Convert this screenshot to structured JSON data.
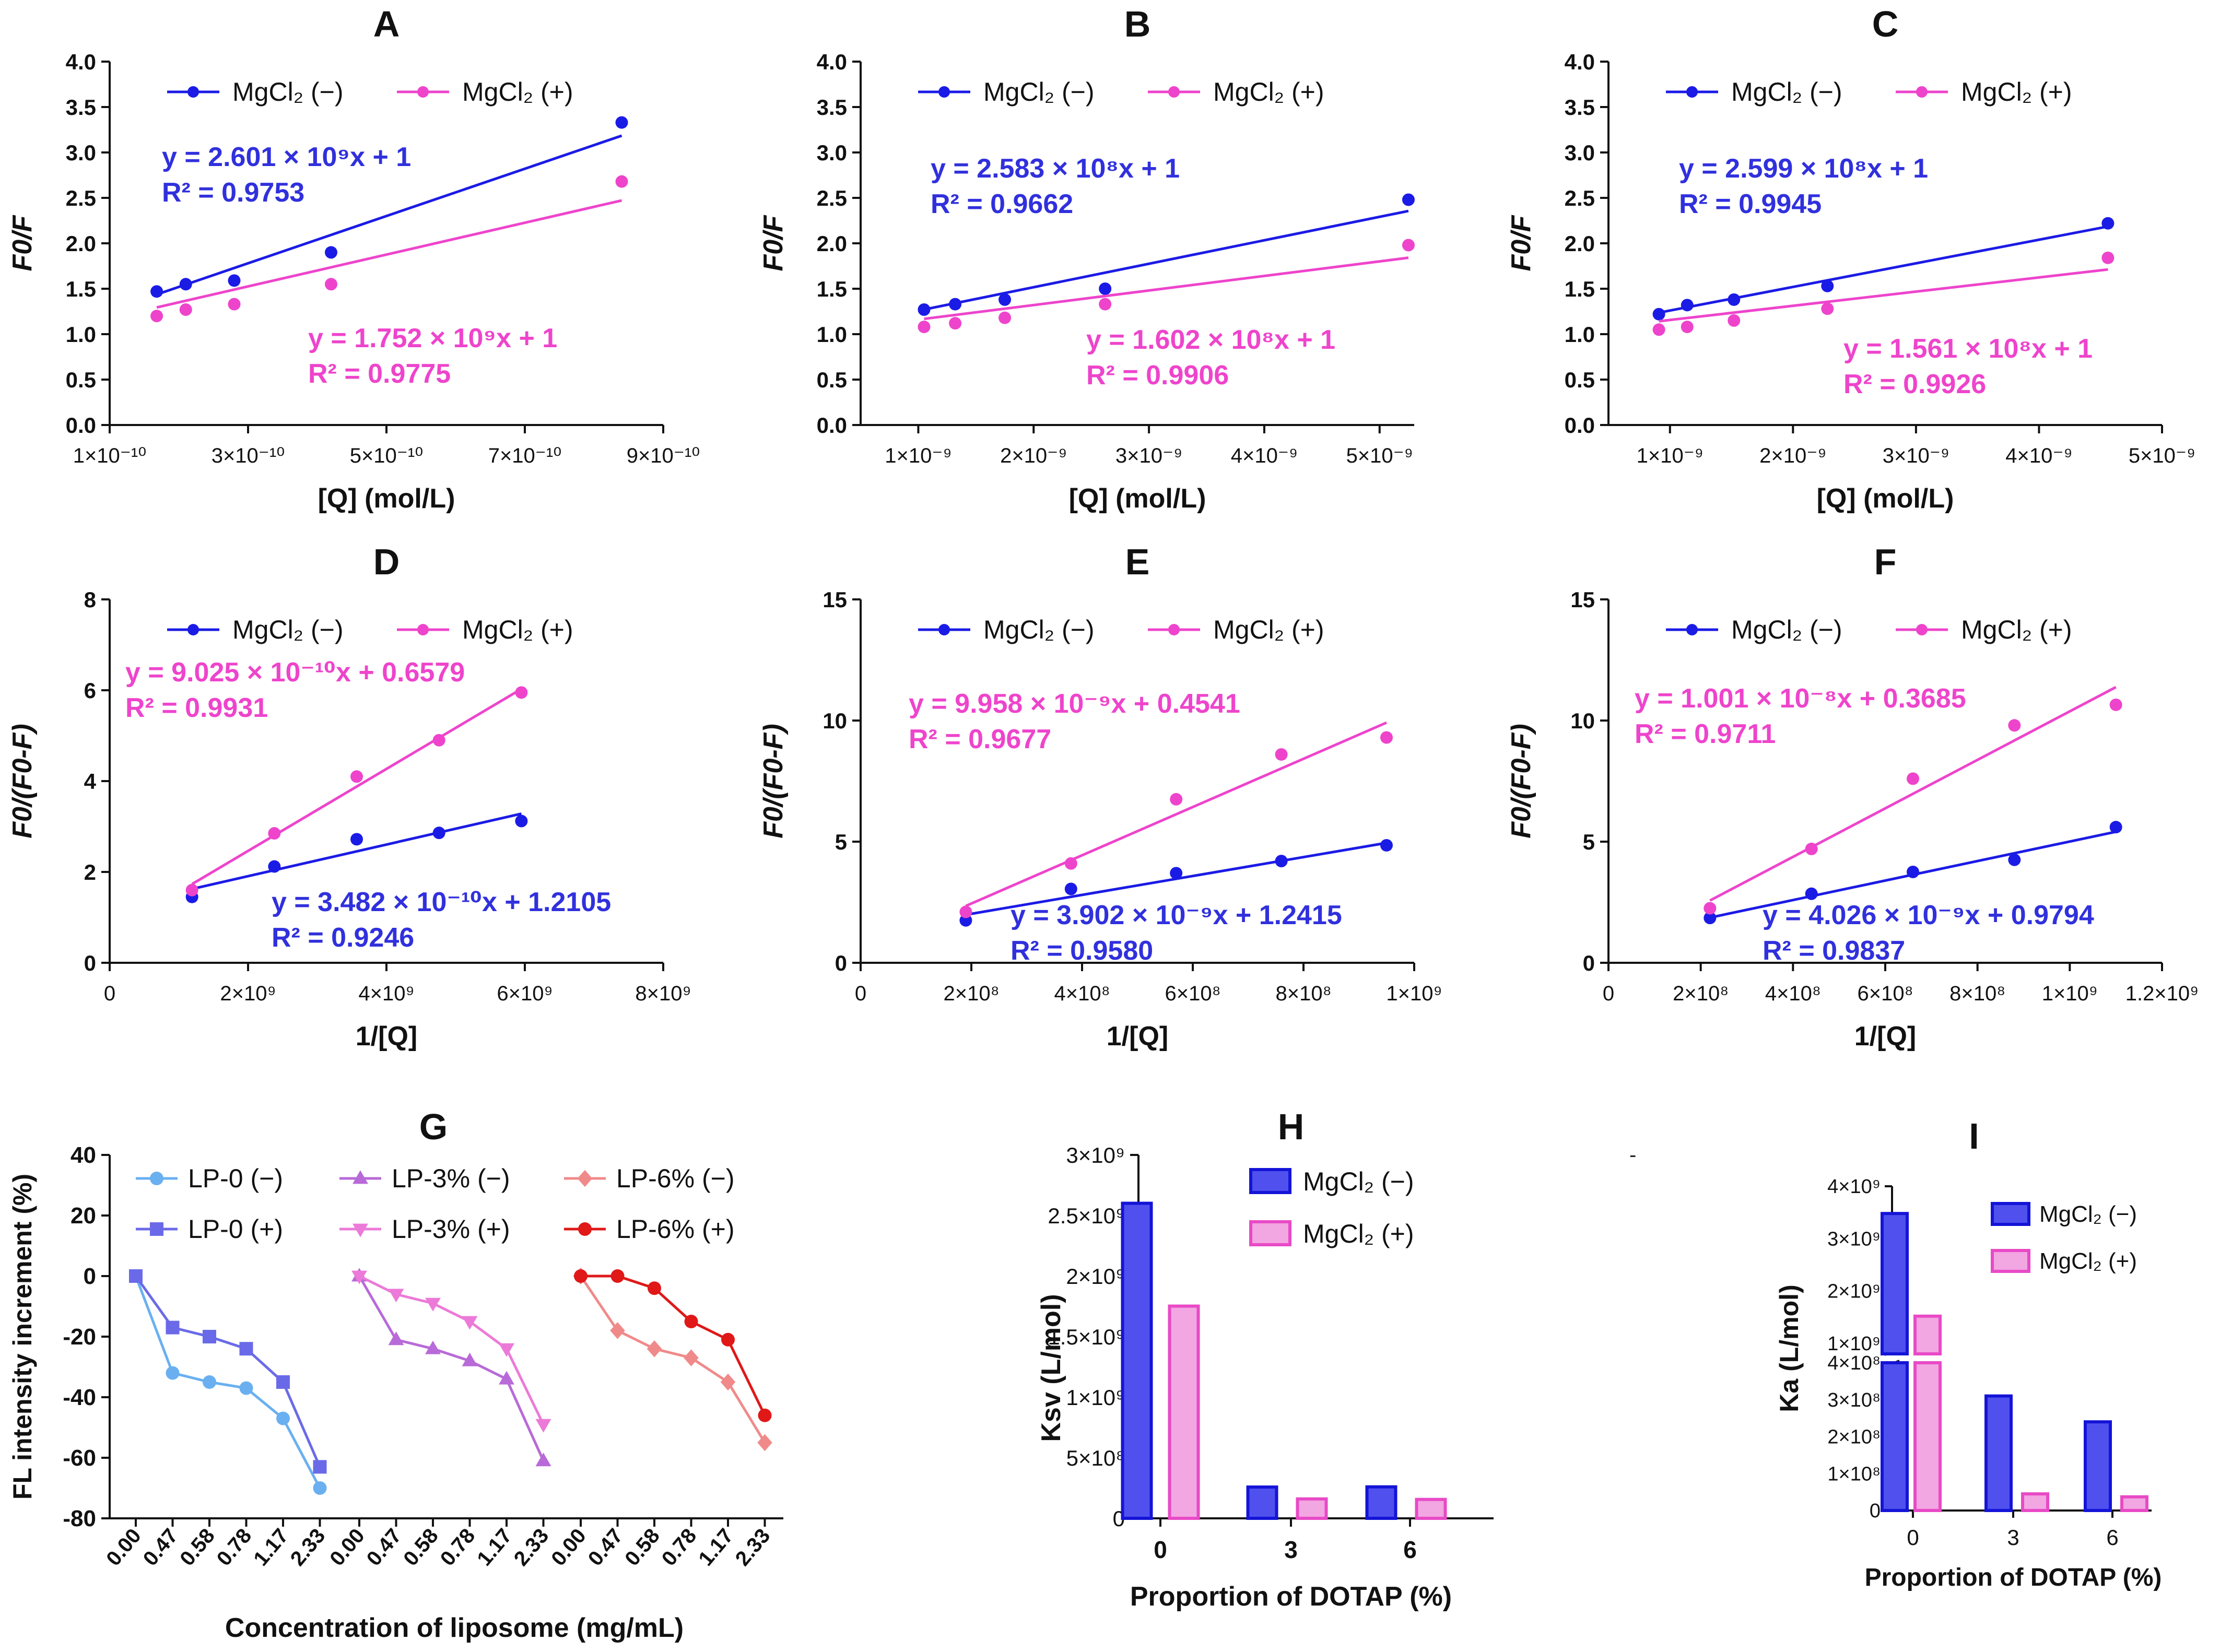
{
  "figure": {
    "colors": {
      "blue": "#1b1be6",
      "pink": "#ee44cc",
      "eq_blue": "#3030dd",
      "eq_pink": "#ee44cc",
      "lp0_minus": "#6ab0f0",
      "lp0_plus": "#6a6ae8",
      "lp3_minus": "#b86ad8",
      "lp3_plus": "#ec7ad8",
      "lp6_minus": "#f08a8a",
      "lp6_plus": "#e01818",
      "bar_blue_fill": "#5050ee",
      "bar_blue_edge": "#1414d8",
      "bar_pink_fill": "#f2a6e2",
      "bar_pink_edge": "#e84ac6"
    },
    "stray_mark": "-"
  },
  "chart_data": [
    {
      "id": "A",
      "type": "scatter",
      "title": "A",
      "xlabel": "[Q] (mol/L)",
      "ylabel": "F0/F",
      "xlim": [
        1e-10,
        9e-10
      ],
      "ylim": [
        0,
        4
      ],
      "xticks": [
        1e-10,
        3e-10,
        5e-10,
        7e-10,
        9e-10
      ],
      "xtick_labels": [
        "1×10⁻¹⁰",
        "3×10⁻¹⁰",
        "5×10⁻¹⁰",
        "7×10⁻¹⁰",
        "9×10⁻¹⁰"
      ],
      "yticks": [
        0,
        0.5,
        1,
        1.5,
        2,
        2.5,
        3,
        3.5,
        4
      ],
      "ytick_labels": [
        "0.0",
        "0.5",
        "1.0",
        "1.5",
        "2.0",
        "2.5",
        "3.0",
        "3.5",
        "4.0"
      ],
      "legend": [
        "MgCl₂ (−)",
        "MgCl₂ (+)"
      ],
      "series": [
        {
          "name": "MgCl₂ (−)",
          "x": [
            1.68e-10,
            2.1e-10,
            2.8e-10,
            4.2e-10,
            8.4e-10
          ],
          "y": [
            1.47,
            1.55,
            1.59,
            1.9,
            3.33
          ],
          "fit": {
            "slope": 2601000000.0,
            "intercept": 1,
            "x0": 1.68e-10,
            "x1": 8.4e-10
          },
          "equation": "y = 2.601 × 10⁹x + 1",
          "r2": "R² = 0.9753"
        },
        {
          "name": "MgCl₂ (+)",
          "x": [
            1.68e-10,
            2.1e-10,
            2.8e-10,
            4.2e-10,
            8.4e-10
          ],
          "y": [
            1.2,
            1.27,
            1.33,
            1.55,
            2.68
          ],
          "fit": {
            "slope": 1752000000.0,
            "intercept": 1,
            "x0": 1.68e-10,
            "x1": 8.4e-10
          },
          "equation": "y = 1.752 × 10⁹x + 1",
          "r2": "R² = 0.9775"
        }
      ]
    },
    {
      "id": "B",
      "type": "scatter",
      "title": "B",
      "xlabel": "[Q] (mol/L)",
      "ylabel": "F0/F",
      "xlim": [
        5e-10,
        5.3e-09
      ],
      "ylim": [
        0,
        4
      ],
      "xticks": [
        1e-09,
        2e-09,
        3e-09,
        4e-09,
        5e-09
      ],
      "xtick_labels": [
        "1×10⁻⁹",
        "2×10⁻⁹",
        "3×10⁻⁹",
        "4×10⁻⁹",
        "5×10⁻⁹"
      ],
      "yticks": [
        0,
        0.5,
        1,
        1.5,
        2,
        2.5,
        3,
        3.5,
        4
      ],
      "ytick_labels": [
        "0.0",
        "0.5",
        "1.0",
        "1.5",
        "2.0",
        "2.5",
        "3.0",
        "3.5",
        "4.0"
      ],
      "legend": [
        "MgCl₂ (−)",
        "MgCl₂ (+)"
      ],
      "series": [
        {
          "name": "MgCl₂ (−)",
          "x": [
            1.05e-09,
            1.32e-09,
            1.75e-09,
            2.62e-09,
            5.25e-09
          ],
          "y": [
            1.27,
            1.33,
            1.38,
            1.5,
            2.48
          ],
          "fit": {
            "slope": 258300000.0,
            "intercept": 1,
            "x0": 1.05e-09,
            "x1": 5.25e-09
          },
          "equation": "y = 2.583 × 10⁸x + 1",
          "r2": "R² = 0.9662"
        },
        {
          "name": "MgCl₂ (+)",
          "x": [
            1.05e-09,
            1.32e-09,
            1.75e-09,
            2.62e-09,
            5.25e-09
          ],
          "y": [
            1.08,
            1.12,
            1.18,
            1.33,
            1.98
          ],
          "fit": {
            "slope": 160200000.0,
            "intercept": 1,
            "x0": 1.05e-09,
            "x1": 5.25e-09
          },
          "equation": "y = 1.602 × 10⁸x + 1",
          "r2": "R² = 0.9906"
        }
      ]
    },
    {
      "id": "C",
      "type": "scatter",
      "title": "C",
      "xlabel": "[Q] (mol/L)",
      "ylabel": "F0/F",
      "xlim": [
        5e-10,
        5e-09
      ],
      "ylim": [
        0,
        4
      ],
      "xticks": [
        1e-09,
        2e-09,
        3e-09,
        4e-09,
        5e-09
      ],
      "xtick_labels": [
        "1×10⁻⁹",
        "2×10⁻⁹",
        "3×10⁻⁹",
        "4×10⁻⁹",
        "5×10⁻⁹"
      ],
      "yticks": [
        0,
        0.5,
        1,
        1.5,
        2,
        2.5,
        3,
        3.5,
        4
      ],
      "ytick_labels": [
        "0.0",
        "0.5",
        "1.0",
        "1.5",
        "2.0",
        "2.5",
        "3.0",
        "3.5",
        "4.0"
      ],
      "legend": [
        "MgCl₂ (−)",
        "MgCl₂ (+)"
      ],
      "series": [
        {
          "name": "MgCl₂ (−)",
          "x": [
            9.1e-10,
            1.14e-09,
            1.52e-09,
            2.28e-09,
            4.56e-09
          ],
          "y": [
            1.22,
            1.32,
            1.38,
            1.53,
            2.22
          ],
          "fit": {
            "slope": 259900000.0,
            "intercept": 1,
            "x0": 9.1e-10,
            "x1": 4.56e-09
          },
          "equation": "y = 2.599 × 10⁸x + 1",
          "r2": "R² = 0.9945"
        },
        {
          "name": "MgCl₂ (+)",
          "x": [
            9.1e-10,
            1.14e-09,
            1.52e-09,
            2.28e-09,
            4.56e-09
          ],
          "y": [
            1.05,
            1.08,
            1.15,
            1.28,
            1.84
          ],
          "fit": {
            "slope": 156100000.0,
            "intercept": 1,
            "x0": 9.1e-10,
            "x1": 4.56e-09
          },
          "equation": "y = 1.561 × 10⁸x + 1",
          "r2": "R² = 0.9926"
        }
      ]
    },
    {
      "id": "D",
      "type": "scatter",
      "title": "D",
      "xlabel": "1/[Q]",
      "ylabel": "F0/(F0-F)",
      "xlim": [
        0,
        8000000000.0
      ],
      "ylim": [
        0,
        8
      ],
      "xticks": [
        0,
        2000000000.0,
        4000000000.0,
        6000000000.0,
        8000000000.0
      ],
      "xtick_labels": [
        "0",
        "2×10⁹",
        "4×10⁹",
        "6×10⁹",
        "8×10⁹"
      ],
      "yticks": [
        0,
        2,
        4,
        6,
        8
      ],
      "ytick_labels": [
        "0",
        "2",
        "4",
        "6",
        "8"
      ],
      "legend": [
        "MgCl₂ (−)",
        "MgCl₂ (+)"
      ],
      "series": [
        {
          "name": "MgCl₂ (−)",
          "x": [
            1190000000.0,
            2380000000.0,
            3570000000.0,
            4760000000.0,
            5950000000.0
          ],
          "y": [
            1.45,
            2.12,
            2.72,
            2.86,
            3.12
          ],
          "fit": {
            "slope": 3.482e-10,
            "intercept": 1.2105,
            "x0": 1190000000.0,
            "x1": 5950000000.0
          },
          "equation": "y = 3.482 × 10⁻¹⁰x + 1.2105",
          "r2": "R² = 0.9246"
        },
        {
          "name": "MgCl₂ (+)",
          "x": [
            1190000000.0,
            2380000000.0,
            3570000000.0,
            4760000000.0,
            5950000000.0
          ],
          "y": [
            1.6,
            2.85,
            4.1,
            4.9,
            5.95
          ],
          "fit": {
            "slope": 9.025e-10,
            "intercept": 0.6579,
            "x0": 1190000000.0,
            "x1": 5950000000.0
          },
          "equation": "y = 9.025 × 10⁻¹⁰x + 0.6579",
          "r2": "R² = 0.9931"
        }
      ]
    },
    {
      "id": "E",
      "type": "scatter",
      "title": "E",
      "xlabel": "1/[Q]",
      "ylabel": "F0/(F0-F)",
      "xlim": [
        0,
        1000000000.0
      ],
      "ylim": [
        0,
        15
      ],
      "xticks": [
        0,
        200000000.0,
        400000000.0,
        600000000.0,
        800000000.0,
        1000000000.0
      ],
      "xtick_labels": [
        "0",
        "2×10⁸",
        "4×10⁸",
        "6×10⁸",
        "8×10⁸",
        "1×10⁹"
      ],
      "yticks": [
        0,
        5,
        10,
        15
      ],
      "ytick_labels": [
        "0",
        "5",
        "10",
        "15"
      ],
      "legend": [
        "MgCl₂ (−)",
        "MgCl₂ (+)"
      ],
      "series": [
        {
          "name": "MgCl₂ (−)",
          "x": [
            190000000.0,
            380000000.0,
            570000000.0,
            760000000.0,
            950000000.0
          ],
          "y": [
            1.75,
            3.05,
            3.7,
            4.2,
            4.85
          ],
          "fit": {
            "slope": 3.902e-09,
            "intercept": 1.2415,
            "x0": 190000000.0,
            "x1": 950000000.0
          },
          "equation": "y = 3.902 × 10⁻⁹x + 1.2415",
          "r2": "R² = 0.9580"
        },
        {
          "name": "MgCl₂ (+)",
          "x": [
            190000000.0,
            380000000.0,
            570000000.0,
            760000000.0,
            950000000.0
          ],
          "y": [
            2.1,
            4.1,
            6.75,
            8.6,
            9.3
          ],
          "fit": {
            "slope": 9.958e-09,
            "intercept": 0.4541,
            "x0": 190000000.0,
            "x1": 950000000.0
          },
          "equation": "y = 9.958 × 10⁻⁹x + 0.4541",
          "r2": "R² = 0.9677"
        }
      ]
    },
    {
      "id": "F",
      "type": "scatter",
      "title": "F",
      "xlabel": "1/[Q]",
      "ylabel": "F0/(F0-F)",
      "xlim": [
        0,
        1200000000.0
      ],
      "ylim": [
        0,
        15
      ],
      "xticks": [
        0,
        200000000.0,
        400000000.0,
        600000000.0,
        800000000.0,
        1000000000.0,
        1200000000.0
      ],
      "xtick_labels": [
        "0",
        "2×10⁸",
        "4×10⁸",
        "6×10⁸",
        "8×10⁸",
        "1×10⁹",
        "1.2×10⁹"
      ],
      "yticks": [
        0,
        5,
        10,
        15
      ],
      "ytick_labels": [
        "0",
        "5",
        "10",
        "15"
      ],
      "legend": [
        "MgCl₂ (−)",
        "MgCl₂ (+)"
      ],
      "series": [
        {
          "name": "MgCl₂ (−)",
          "x": [
            220000000.0,
            440000000.0,
            660000000.0,
            880000000.0,
            1100000000.0
          ],
          "y": [
            1.85,
            2.85,
            3.75,
            4.25,
            5.6
          ],
          "fit": {
            "slope": 4.026e-09,
            "intercept": 0.9794,
            "x0": 220000000.0,
            "x1": 1100000000.0
          },
          "equation": "y = 4.026 × 10⁻⁹x + 0.9794",
          "r2": "R² = 0.9837"
        },
        {
          "name": "MgCl₂ (+)",
          "x": [
            220000000.0,
            440000000.0,
            660000000.0,
            880000000.0,
            1100000000.0
          ],
          "y": [
            2.25,
            4.7,
            7.6,
            9.8,
            10.65
          ],
          "fit": {
            "slope": 1.001e-08,
            "intercept": 0.3685,
            "x0": 220000000.0,
            "x1": 1100000000.0
          },
          "equation": "y = 1.001 × 10⁻⁸x + 0.3685",
          "r2": "R² = 0.9711"
        }
      ]
    },
    {
      "id": "G",
      "type": "line",
      "title": "G",
      "xlabel": "Concentration of liposome (mg/mL)",
      "ylabel": "FL intensity increment (%)",
      "categories": [
        "0.00",
        "0.47",
        "0.58",
        "0.78",
        "1.17",
        "2.33"
      ],
      "groups": 3,
      "ylim": [
        -80,
        40
      ],
      "yticks": [
        -80,
        -60,
        -40,
        -20,
        0,
        20,
        40
      ],
      "ytick_labels": [
        "-80",
        "-60",
        "-40",
        "-20",
        "0",
        "20",
        "40"
      ],
      "series": [
        {
          "name": "LP-0 (−)",
          "group": 0,
          "marker": "circle",
          "values": [
            0,
            -32,
            -35,
            -37,
            -47,
            -70
          ]
        },
        {
          "name": "LP-0 (+)",
          "group": 0,
          "marker": "square",
          "values": [
            0,
            -17,
            -20,
            -24,
            -35,
            -63
          ]
        },
        {
          "name": "LP-3% (−)",
          "group": 1,
          "marker": "triangle-up",
          "values": [
            0,
            -21,
            -24,
            -28,
            -34,
            -61
          ]
        },
        {
          "name": "LP-3% (+)",
          "group": 1,
          "marker": "triangle-down",
          "values": [
            0,
            -6,
            -9,
            -15,
            -24,
            -49
          ]
        },
        {
          "name": "LP-6% (−)",
          "group": 2,
          "marker": "diamond",
          "values": [
            0,
            -18,
            -24,
            -27,
            -35,
            -55
          ]
        },
        {
          "name": "LP-6% (+)",
          "group": 2,
          "marker": "circle",
          "values": [
            0,
            0,
            -4,
            -15,
            -21,
            -46
          ]
        }
      ]
    },
    {
      "id": "H",
      "type": "bar",
      "title": "H",
      "xlabel": "Proportion of DOTAP (%)",
      "ylabel": "Ksv (L/mol)",
      "categories": [
        "0",
        "3",
        "6"
      ],
      "ylim": [
        0,
        3000000000.0
      ],
      "yticks": [
        0,
        500000000.0,
        1000000000.0,
        1500000000.0,
        2000000000.0,
        2500000000.0,
        3000000000.0
      ],
      "ytick_labels": [
        "0",
        "5×10⁸",
        "1×10⁹",
        "1.5×10⁹",
        "2×10⁹",
        "2.5×10⁹",
        "3×10⁹"
      ],
      "series": [
        {
          "name": "MgCl₂ (−)",
          "values": [
            2601000000.0,
            258300000.0,
            259900000.0
          ]
        },
        {
          "name": "MgCl₂ (+)",
          "values": [
            1752000000.0,
            160200000.0,
            156100000.0
          ]
        }
      ]
    },
    {
      "id": "I",
      "type": "bar",
      "title": "I",
      "xlabel": "Proportion of DOTAP (%)",
      "ylabel": "Ka (L/mol)",
      "categories": [
        "0",
        "3",
        "6"
      ],
      "broken_axis": {
        "lower": [
          0,
          400000000.0
        ],
        "upper": [
          800000000.0,
          4000000000.0
        ]
      },
      "yticks_lower": [
        0,
        100000000.0,
        200000000.0,
        300000000.0,
        400000000.0
      ],
      "ytick_labels_lower": [
        "0",
        "1×10⁸",
        "2×10⁸",
        "3×10⁸",
        "4×10⁸"
      ],
      "yticks_upper": [
        1000000000.0,
        2000000000.0,
        3000000000.0,
        4000000000.0
      ],
      "ytick_labels_upper": [
        "1×10⁹",
        "2×10⁹",
        "3×10⁹",
        "4×10⁹"
      ],
      "series": [
        {
          "name": "MgCl₂ (−)",
          "values": [
            3480000000.0,
            310000000.0,
            240000000.0
          ]
        },
        {
          "name": "MgCl₂ (+)",
          "values": [
            1520000000.0,
            45000000.0,
            37000000.0
          ]
        }
      ]
    }
  ]
}
